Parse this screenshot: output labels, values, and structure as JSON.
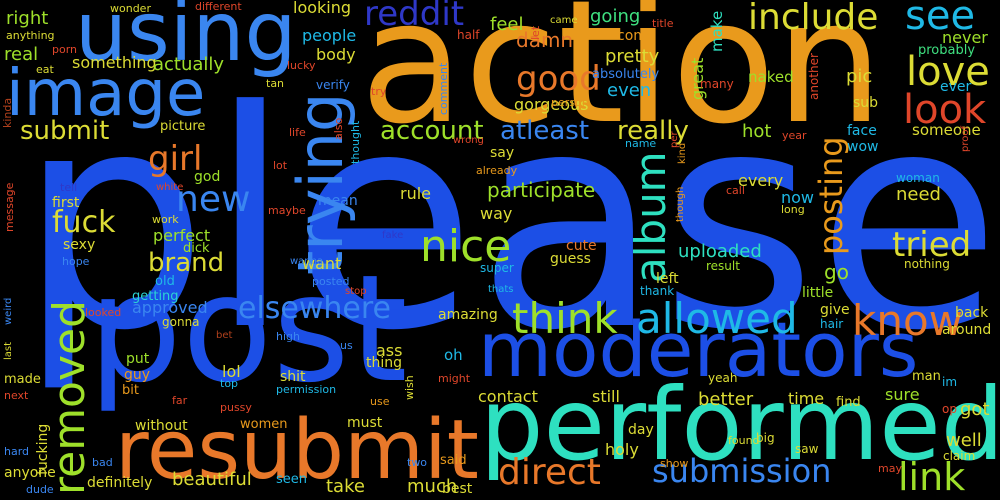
{
  "words": {
    "please": "please",
    "action": "action",
    "post": "post",
    "performed": "performed",
    "moderators": "moderators",
    "resubmit": "resubmit",
    "using": "using",
    "image": "image",
    "trying": "trying",
    "removed": "removed",
    "think": "think",
    "allowed": "allowed",
    "nice": "nice",
    "album": "album",
    "know": "know",
    "include": "include",
    "see": "see",
    "love": "love",
    "look": "look",
    "reddit": "reddit",
    "good": "good",
    "girl": "girl",
    "fuck": "fuck",
    "new": "new",
    "brand": "brand",
    "submit": "submit",
    "account": "account",
    "atleast": "atleast",
    "really": "really",
    "posting": "posting",
    "tried": "tried",
    "link": "link",
    "submission": "submission",
    "direct": "direct",
    "elsewhere": "elsewhere",
    "uploaded": "uploaded",
    "go": "go",
    "participate": "participate",
    "right": "right",
    "real": "real",
    "something": "something",
    "actually": "actually",
    "looking": "looking",
    "people": "people",
    "body": "body",
    "damn": "damn",
    "feel": "feel",
    "going": "going",
    "come": "come",
    "make": "make",
    "pretty": "pretty",
    "even": "even",
    "great": "great",
    "gorgeous": "gorgeous",
    "absolutely": "absolutely",
    "naked": "naked",
    "pic": "pic",
    "sub": "sub",
    "never": "never",
    "probably": "probably",
    "ever": "ever",
    "hot": "hot",
    "face": "face",
    "wow": "wow",
    "someone": "someone",
    "picture": "picture",
    "god": "god",
    "first": "first",
    "perfect": "perfect",
    "sexy": "sexy",
    "dick": "dick",
    "old": "old",
    "getting": "getting",
    "approved": "approved",
    "gonna": "gonna",
    "want": "want",
    "rule": "rule",
    "way": "way",
    "mean": "mean",
    "say": "say",
    "every": "every",
    "need": "need",
    "woman": "woman",
    "now": "now",
    "guess": "guess",
    "cute": "cute",
    "result": "result",
    "nothing": "nothing",
    "left": "left",
    "thank": "thank",
    "super": "super",
    "little": "little",
    "give": "give",
    "hair": "hair",
    "back": "back",
    "around": "around",
    "lol": "lol",
    "put": "put",
    "guy": "guy",
    "bit": "bit",
    "ass": "ass",
    "thing": "thing",
    "shit": "shit",
    "permission": "permission",
    "top": "top",
    "women": "women",
    "without": "without",
    "must": "must",
    "amazing": "amazing",
    "oh": "oh",
    "might": "might",
    "contact": "contact",
    "still": "still",
    "better": "better",
    "time": "time",
    "find": "find",
    "sure": "sure",
    "got": "got",
    "well": "well",
    "claim": "claim",
    "saw": "saw",
    "big": "big",
    "day": "day",
    "found": "found",
    "holy": "holy",
    "said": "said",
    "two": "two",
    "show": "show",
    "may": "may",
    "best": "best",
    "much": "much",
    "take": "take",
    "seen": "seen",
    "beautiful": "beautiful",
    "definitely": "definitely",
    "fucking": "fucking",
    "anyone": "anyone",
    "made": "made",
    "next": "next",
    "hard": "hard",
    "dude": "dude",
    "bad": "bad",
    "wonder": "wonder",
    "different": "different",
    "anything": "anything",
    "porn": "porn",
    "eat": "eat",
    "lucky": "lucky",
    "tan": "tan",
    "verify": "verify",
    "half": "half",
    "try": "try",
    "comment": "comment",
    "person": "person",
    "let": "let",
    "came": "came",
    "title": "title",
    "many": "many",
    "another": "another",
    "kinda": "kinda",
    "life": "life",
    "also": "also",
    "thought": "thought",
    "wrong": "wrong",
    "already": "already",
    "name": "name",
    "per": "per",
    "kind": "kind",
    "though": "though",
    "call": "call",
    "long": "long",
    "year": "year",
    "proof": "proof",
    "tell": "tell",
    "white": "white",
    "work": "work",
    "hope": "hope",
    "message": "message",
    "weird": "weird",
    "last": "last",
    "maybe": "maybe",
    "lot": "lot",
    "fake": "fake",
    "wanna": "wanna",
    "posted": "posted",
    "stop": "stop",
    "thats": "thats",
    "bet": "bet",
    "looked": "looked",
    "high": "high",
    "us": "us",
    "wish": "wish",
    "use": "use",
    "far": "far",
    "pussy": "pussy",
    "im": "im",
    "op": "op",
    "yeah": "yeah",
    "man": "man"
  }
}
